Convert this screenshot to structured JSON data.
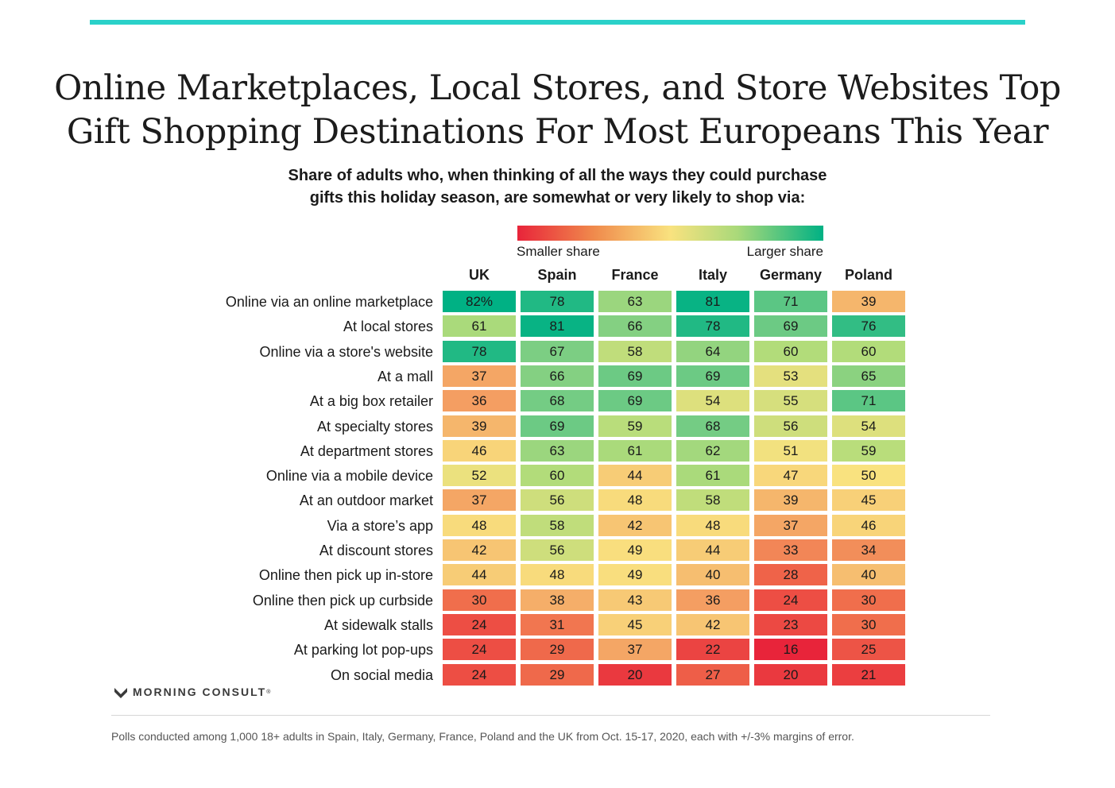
{
  "title_lines": [
    "Online Marketplaces, Local Stores, and Store Websites Top",
    "Gift Shopping Destinations For Most Europeans This Year"
  ],
  "subtitle_lines": [
    "Share of adults who, when thinking of all the ways they could purchase",
    "gifts this holiday season, are somewhat or very likely to shop via:"
  ],
  "legend": {
    "low_label": "Smaller share",
    "high_label": "Larger share"
  },
  "brand": "MORNING CONSULT",
  "brand_mark": "®",
  "footnote": "Polls conducted among 1,000 18+ adults in Spain, Italy, Germany, France, Poland and the UK from Oct. 15-17, 2020, each with +/-3% margins of error.",
  "colors": {
    "accent": "#2ad1c9",
    "low": "#e8243a",
    "mid": "#f9e27f",
    "high": "#00b184"
  },
  "chart_data": {
    "type": "heatmap",
    "columns": [
      "UK",
      "Spain",
      "France",
      "Italy",
      "Germany",
      "Poland"
    ],
    "rows": [
      "Online via an online marketplace",
      "At local stores",
      "Online via a store's website",
      "At a mall",
      "At a big box retailer",
      "At specialty stores",
      "At department stores",
      "Online via a mobile device",
      "At an outdoor market",
      "Via a store’s app",
      "At discount stores",
      "Online then pick up in-store",
      "Online then pick up curbside",
      "At sidewalk stalls",
      "At parking lot pop-ups",
      "On social media"
    ],
    "values": [
      [
        82,
        78,
        63,
        81,
        71,
        39
      ],
      [
        61,
        81,
        66,
        78,
        69,
        76
      ],
      [
        78,
        67,
        58,
        64,
        60,
        60
      ],
      [
        37,
        66,
        69,
        69,
        53,
        65
      ],
      [
        36,
        68,
        69,
        54,
        55,
        71
      ],
      [
        39,
        69,
        59,
        68,
        56,
        54
      ],
      [
        46,
        63,
        61,
        62,
        51,
        59
      ],
      [
        52,
        60,
        44,
        61,
        47,
        50
      ],
      [
        37,
        56,
        48,
        58,
        39,
        45
      ],
      [
        48,
        58,
        42,
        48,
        37,
        46
      ],
      [
        42,
        56,
        49,
        44,
        33,
        34
      ],
      [
        44,
        48,
        49,
        40,
        28,
        40
      ],
      [
        30,
        38,
        43,
        36,
        24,
        30
      ],
      [
        24,
        31,
        45,
        42,
        23,
        30
      ],
      [
        24,
        29,
        37,
        22,
        16,
        25
      ],
      [
        24,
        29,
        20,
        27,
        20,
        21
      ]
    ],
    "first_cell_label": "82%",
    "unit": "%"
  }
}
